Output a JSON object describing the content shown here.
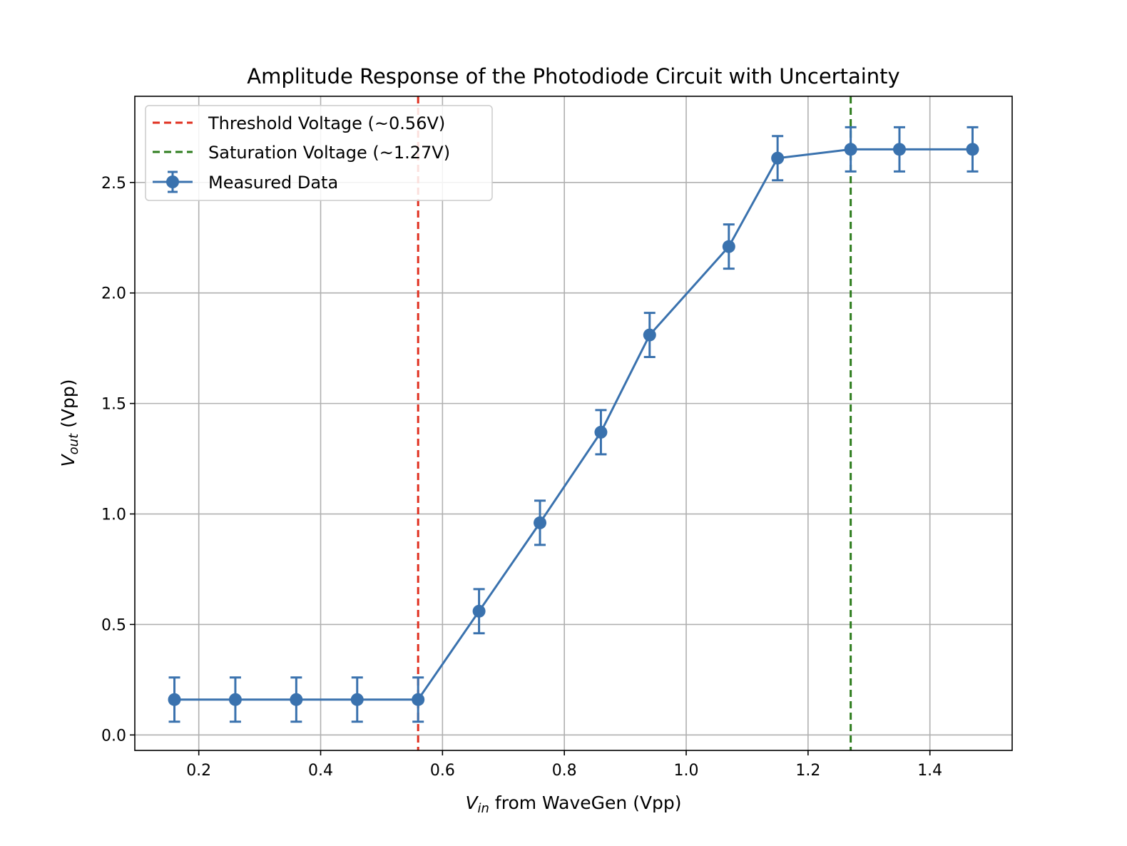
{
  "chart_data": {
    "type": "line",
    "title": "Amplitude Response of the Photodiode Circuit with Uncertainty",
    "xlabel": {
      "symbol": "V",
      "sub": "in",
      "rest": " from WaveGen (Vpp)"
    },
    "ylabel": {
      "symbol": "V",
      "sub": "out",
      "rest": " (Vpp)"
    },
    "xlim": [
      0.095,
      1.535
    ],
    "ylim": [
      -0.07,
      2.89
    ],
    "xticks": [
      0.2,
      0.4,
      0.6,
      0.8,
      1.0,
      1.2,
      1.4
    ],
    "xtick_labels": [
      "0.2",
      "0.4",
      "0.6",
      "0.8",
      "1.0",
      "1.2",
      "1.4"
    ],
    "yticks": [
      0.0,
      0.5,
      1.0,
      1.5,
      2.0,
      2.5
    ],
    "ytick_labels": [
      "0.0",
      "0.5",
      "1.0",
      "1.5",
      "2.0",
      "2.5"
    ],
    "grid": true,
    "legend_position": "top-left",
    "series": [
      {
        "name": "Measured Data",
        "color": "#3a72ae",
        "x": [
          0.16,
          0.26,
          0.36,
          0.46,
          0.56,
          0.66,
          0.76,
          0.86,
          0.94,
          1.07,
          1.15,
          1.27,
          1.35,
          1.47
        ],
        "y": [
          0.16,
          0.16,
          0.16,
          0.16,
          0.16,
          0.56,
          0.96,
          1.37,
          1.81,
          2.21,
          2.61,
          2.65,
          2.65,
          2.65
        ],
        "yerr": 0.1
      }
    ],
    "vlines": [
      {
        "name": "Threshold Voltage (~0.56V)",
        "x": 0.56,
        "color": "#e03020"
      },
      {
        "name": "Saturation Voltage (~1.27V)",
        "x": 1.27,
        "color": "#2e7d1e"
      }
    ]
  }
}
